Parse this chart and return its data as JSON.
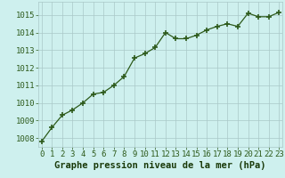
{
  "x": [
    0,
    1,
    2,
    3,
    4,
    5,
    6,
    7,
    8,
    9,
    10,
    11,
    12,
    13,
    14,
    15,
    16,
    17,
    18,
    19,
    20,
    21,
    22,
    23
  ],
  "y": [
    1007.8,
    1008.6,
    1009.3,
    1009.6,
    1010.0,
    1010.5,
    1010.6,
    1011.0,
    1011.5,
    1012.55,
    1012.8,
    1013.15,
    1014.0,
    1013.65,
    1013.65,
    1013.85,
    1014.15,
    1014.35,
    1014.5,
    1014.35,
    1015.1,
    1014.9,
    1014.9,
    1015.15
  ],
  "line_color": "#2d5a1b",
  "marker": "+",
  "marker_color": "#2d5a1b",
  "bg_plot": "#cef0ee",
  "bg_figure": "#cef0ee",
  "grid_color": "#aac8c8",
  "xlabel": "Graphe pression niveau de la mer (hPa)",
  "xlabel_color": "#1a3a0a",
  "xlabel_fontsize": 7.5,
  "ylim": [
    1007.5,
    1015.75
  ],
  "yticks": [
    1008,
    1009,
    1010,
    1011,
    1012,
    1013,
    1014,
    1015
  ],
  "xticks": [
    0,
    1,
    2,
    3,
    4,
    5,
    6,
    7,
    8,
    9,
    10,
    11,
    12,
    13,
    14,
    15,
    16,
    17,
    18,
    19,
    20,
    21,
    22,
    23
  ],
  "tick_color": "#2d5a1b",
  "tick_fontsize": 6.5,
  "xlim": [
    -0.3,
    23.3
  ]
}
